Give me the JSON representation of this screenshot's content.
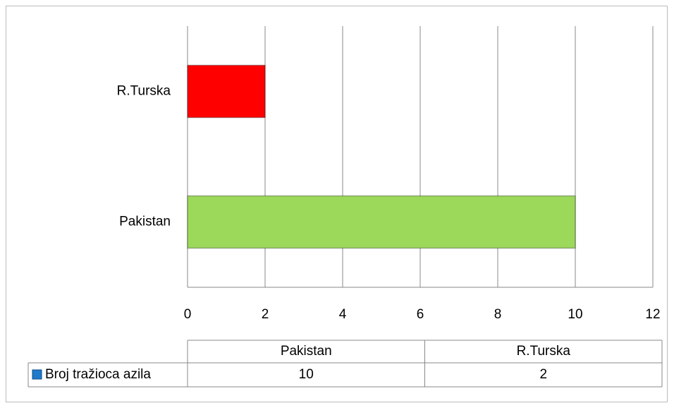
{
  "chart_data": {
    "type": "bar",
    "orientation": "horizontal",
    "categories": [
      "Pakistan",
      "R.Turska"
    ],
    "series": [
      {
        "name": "Broj tražioca azila",
        "color": "#1f7ac9",
        "values": [
          10,
          2
        ],
        "point_colors": [
          "#9cd85a",
          "#ff0000"
        ]
      }
    ],
    "xlim": [
      0,
      12
    ],
    "xticks": [
      0,
      2,
      4,
      6,
      8,
      10,
      12
    ],
    "grid": true,
    "data_table": true
  }
}
